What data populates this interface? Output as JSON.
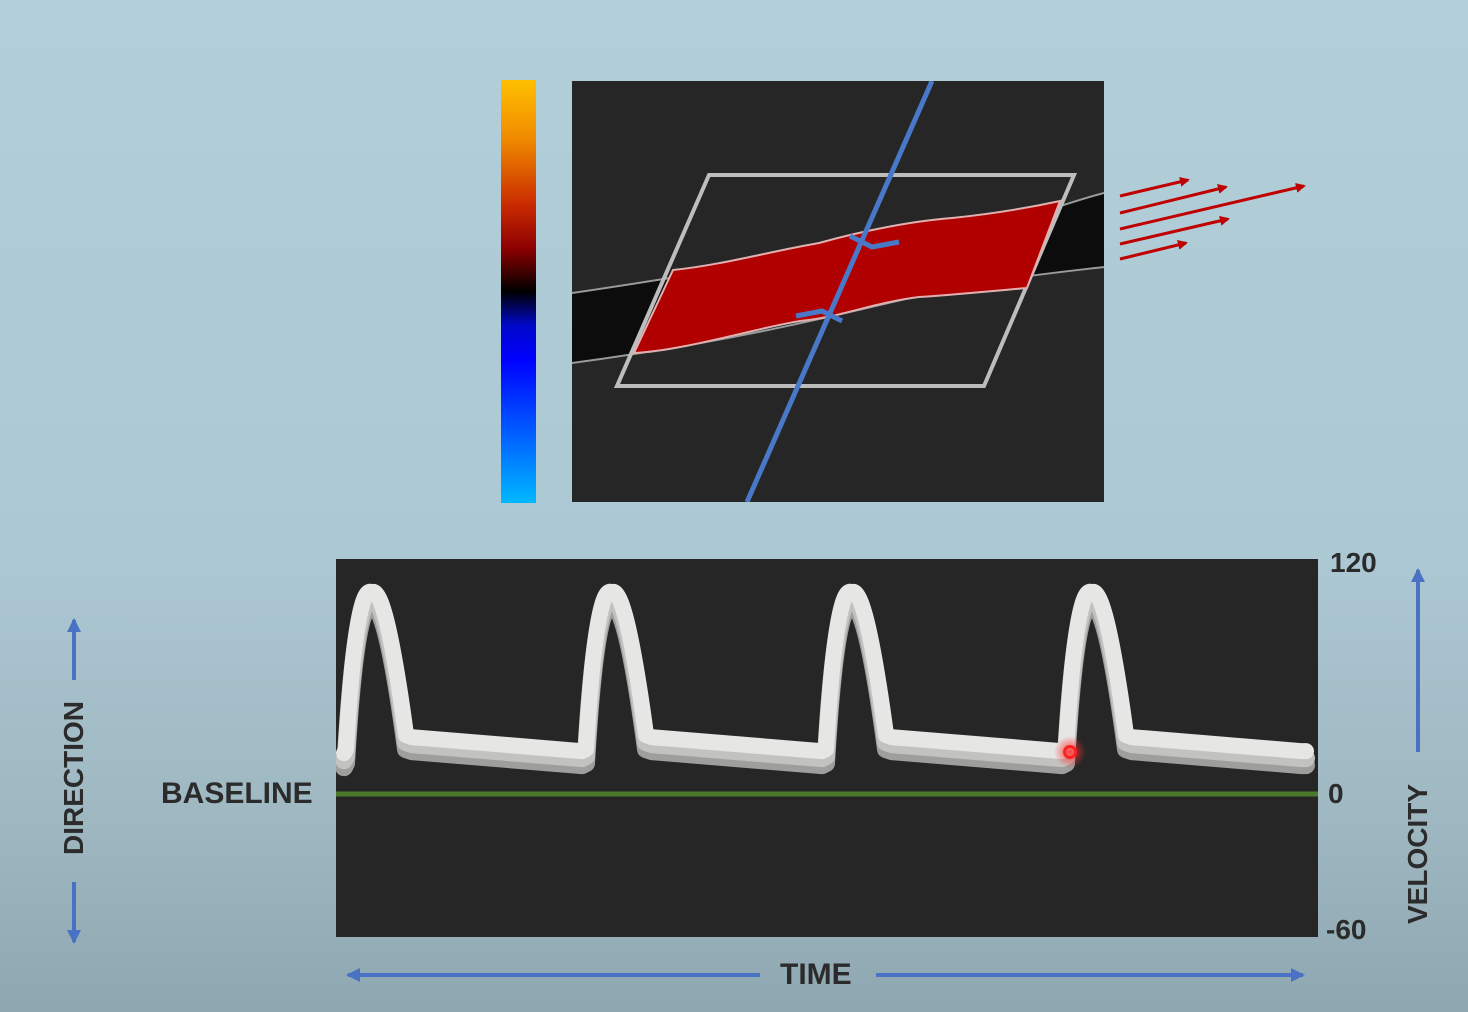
{
  "colors": {
    "background": "#b2cfd9",
    "panel": "#262626",
    "flow_red": "#b00000",
    "beam_blue": "#4a78c8",
    "baseline_green": "#4b7a2c",
    "waveform": "#e6e6e4",
    "arrow_blue": "#4a72c4",
    "flow_arrow_red": "#c00000"
  },
  "diagram": {
    "color_scale": {
      "colors": [
        "#ffc000",
        "#c82800",
        "#000000",
        "#0000ff",
        "#00b8ff"
      ]
    },
    "flow_arrows": {
      "count": 5,
      "direction": "right"
    }
  },
  "spectral": {
    "axis": {
      "max_label": "120",
      "zero_label": "0",
      "min_label": "-60"
    },
    "labels": {
      "baseline": "BASELINE",
      "time": "TIME",
      "direction": "DIRECTION",
      "velocity": "VELOCITY"
    },
    "waveform": {
      "peak_count": 4,
      "peak_velocity": 103,
      "diastolic_velocity": 28,
      "axis_range": [
        -60,
        120
      ]
    },
    "marker": {
      "icon": "record-dot-icon"
    }
  }
}
